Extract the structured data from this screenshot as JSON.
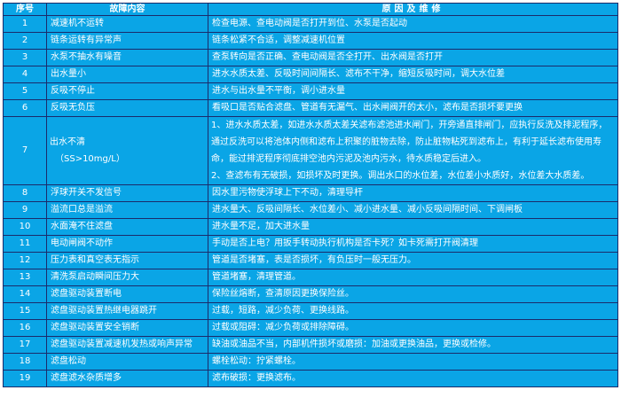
{
  "headers": {
    "no": "序号",
    "fault": "故障内容",
    "reason": "原因及维修"
  },
  "rows": [
    {
      "no": "1",
      "fault": "减速机不运转",
      "reason": "检查电源、查电动阀是否打开到位、水泵是否起动"
    },
    {
      "no": "2",
      "fault": "链条运转有异常声",
      "reason": "链条松紧不合适，调整减速机位置"
    },
    {
      "no": "3",
      "fault": "水泵不抽水有噪音",
      "reason": "查泵转向是否正确、查电动阀是否全打开、出水阀是否打开"
    },
    {
      "no": "4",
      "fault": "出水量小",
      "reason": "进水水质太差、反吸时间间隔长、滤布不干净，缩短反吸时间，调大水位差"
    },
    {
      "no": "5",
      "fault": "反吸不停止",
      "reason": "进水与出水量不平衡，调小进水量"
    },
    {
      "no": "6",
      "fault": "反吸无负压",
      "reason": "看吸口是否贴合滤盘、管道有无漏气、出水闸阀开的太小，滤布是否损坏要更换"
    },
    {
      "no": "7",
      "fault": "出水不清",
      "fault_sub": "（SS>10mg/L）",
      "reason_lines": [
        "1、进水水质太差，如进水水质太差关滤布滤池进水闸门，开旁通直排闸门，应执行反洗及排泥程序，通过反洗可以将池体内侧和滤布上积聚的脏物去除，防止脏物粘死到滤布上，有利于延长滤布使用寿命，能过排泥程序彻底排空池内污泥及池内污水，待水质稳定后进入。",
        "2、查滤布有无破损，如损坏及时更换。调出水口的水位差，水位差小水质好，水位差大水质差。"
      ]
    },
    {
      "no": "8",
      "fault": "浮球开关不发信号",
      "reason": "因水里污物使浮球上下不动，清理导杆"
    },
    {
      "no": "9",
      "fault": "溢流口总是溢流",
      "reason": "进水量大、反吸间隔长、水位差小、减小进水量、减小反吸间隔时间、下调闸板"
    },
    {
      "no": "10",
      "fault": "水面淹不住滤盘",
      "reason": "进水量不足，加大进水量"
    },
    {
      "no": "11",
      "fault": "电动闸阀不动作",
      "reason": " 手动是否上电？用扳手转动执行机构是否卡死？如卡死需打开阀清理"
    },
    {
      "no": "12",
      "fault": "压力表和真空表无指示",
      "reason": "管道是否堵塞，表是否损坏，有负压时一般无压力。"
    },
    {
      "no": "13",
      "fault": "清洗泵启动瞬间压力大",
      "reason": "管道堵塞，清理管道。"
    },
    {
      "no": "14",
      "fault": "滤盘驱动装置断电",
      "reason": "保险丝熔断，查清原因更换保险丝。"
    },
    {
      "no": "15",
      "fault": "滤盘驱动装置热继电器跳开",
      "reason": "过载，短路，减少负荷、更换线路。"
    },
    {
      "no": "16",
      "fault": "滤盘驱动装置安全销断",
      "reason": "过载或阻碍：减少负荷或排除障碍。"
    },
    {
      "no": "17",
      "fault": "滤盘驱动装置减速机发热或响声异常",
      "reason": "缺油或油品不当，内部机件损坏或磨损：加油或更换油品，更换或检修。"
    },
    {
      "no": "18",
      "fault": "滤盘松动",
      "reason": "螺栓松动：拧紧螺栓。"
    },
    {
      "no": "19",
      "fault": "滤盘滤水杂质增多",
      "reason": "滤布破损：更换滤布。"
    }
  ],
  "colors": {
    "background": "#0aa5e6",
    "border": "#1b2b6b",
    "text": "#ffffff"
  }
}
